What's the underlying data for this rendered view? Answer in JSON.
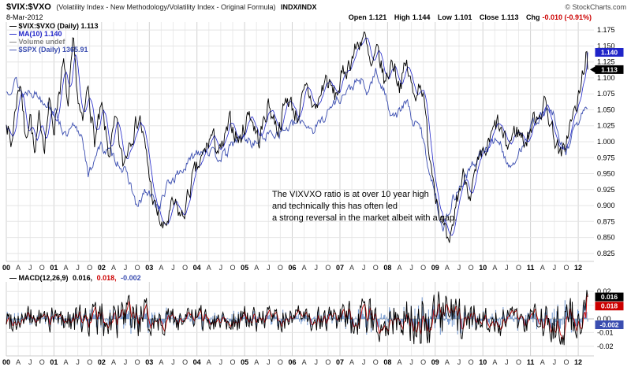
{
  "header": {
    "symbol": "$VIX:$VXO",
    "description": "(Volatility Index - New Methodology/Volatility Index - Original Formula)",
    "exchange": "INDX/INDX",
    "copyright": "© StockCharts.com",
    "date": "8-Mar-2012",
    "quote": [
      {
        "label": "Open",
        "value": "1.121",
        "color": "#000000"
      },
      {
        "label": "High",
        "value": "1.144",
        "color": "#000000"
      },
      {
        "label": "Low",
        "value": "1.101",
        "color": "#000000"
      },
      {
        "label": "Close",
        "value": "1.113",
        "color": "#000000"
      },
      {
        "label": "Chg",
        "value": "-0.010 (-0.91%)",
        "color": "#CC0000"
      }
    ]
  },
  "legend": {
    "items": [
      {
        "label": "— $VIX:$VXO (Daily) 1.113",
        "color": "#000000"
      },
      {
        "label": "— MA(10) 1.140",
        "color": "#1F24C8"
      },
      {
        "label": "— Volume undef",
        "color": "#808080"
      },
      {
        "label": "— $SPX (Daily) 1365.91",
        "color": "#3A4DB0"
      }
    ]
  },
  "annotation": [
    "The VIXVXO ratio is at over 10 year high",
    "and technically this has often led",
    "a strong reversal in the market albeit with a gap."
  ],
  "macd_legend": {
    "label": "— MACD(12,26,9)",
    "label_color": "#000000",
    "values": [
      {
        "text": "0.016,",
        "color": "#000000"
      },
      {
        "text": "0.018,",
        "color": "#CC0000"
      },
      {
        "text": "-0.002",
        "color": "#3A4DB0"
      }
    ]
  },
  "chart_data": [
    {
      "type": "line",
      "title": "$VIX:$VXO (Daily) with MA(10) and $SPX (Daily) overlay",
      "x_unit": "decimal years",
      "x_range": [
        2000.0,
        2012.2
      ],
      "ylim": [
        0.8125,
        1.1875
      ],
      "grid": true,
      "y_ticks": [
        "1.175",
        "1.150",
        "1.125",
        "1.100",
        "1.075",
        "1.050",
        "1.025",
        "1.000",
        "0.975",
        "0.950",
        "0.925",
        "0.900",
        "0.875",
        "0.850",
        "0.825"
      ],
      "x_tick_labels": [
        "00",
        "A",
        "J",
        "O",
        "01",
        "A",
        "J",
        "O",
        "02",
        "A",
        "J",
        "O",
        "03",
        "A",
        "J",
        "O",
        "04",
        "A",
        "J",
        "O",
        "05",
        "A",
        "J",
        "O",
        "06",
        "A",
        "J",
        "O",
        "07",
        "A",
        "J",
        "O",
        "08",
        "A",
        "J",
        "O",
        "09",
        "A",
        "J",
        "O",
        "10",
        "A",
        "J",
        "O",
        "11",
        "A",
        "J",
        "O",
        "12"
      ],
      "series": [
        {
          "name": "$VIX:$VXO (Daily)",
          "color": "#000000",
          "last": 1.113,
          "keypoints": [
            [
              2000,
              1.04
            ],
            [
              2000.1,
              0.99
            ],
            [
              2000.2,
              1.06
            ],
            [
              2000.3,
              1.1
            ],
            [
              2000.4,
              1.0
            ],
            [
              2000.5,
              1.05
            ],
            [
              2000.6,
              0.97
            ],
            [
              2000.7,
              1.04
            ],
            [
              2000.8,
              1.0
            ],
            [
              2000.9,
              1.06
            ],
            [
              2001,
              1.02
            ],
            [
              2001.1,
              1.08
            ],
            [
              2001.2,
              1.12
            ],
            [
              2001.3,
              1.05
            ],
            [
              2001.4,
              1.15
            ],
            [
              2001.5,
              1.07
            ],
            [
              2001.6,
              1.02
            ],
            [
              2001.72,
              1.09
            ],
            [
              2001.85,
              1.0
            ],
            [
              2002,
              1.05
            ],
            [
              2002.15,
              0.98
            ],
            [
              2002.3,
              1.03
            ],
            [
              2002.45,
              0.96
            ],
            [
              2002.6,
              1.01
            ],
            [
              2002.8,
              1.04
            ],
            [
              2002.95,
              0.97
            ],
            [
              2003.1,
              0.9
            ],
            [
              2003.3,
              0.86
            ],
            [
              2003.5,
              0.9
            ],
            [
              2003.7,
              0.88
            ],
            [
              2003.9,
              0.94
            ],
            [
              2004.1,
              0.97
            ],
            [
              2004.3,
              1.01
            ],
            [
              2004.5,
              0.98
            ],
            [
              2004.7,
              1.03
            ],
            [
              2004.9,
              1.0
            ],
            [
              2005.1,
              1.05
            ],
            [
              2005.3,
              1.0
            ],
            [
              2005.5,
              1.06
            ],
            [
              2005.7,
              1.02
            ],
            [
              2005.9,
              1.07
            ],
            [
              2006.1,
              1.04
            ],
            [
              2006.3,
              1.08
            ],
            [
              2006.5,
              1.05
            ],
            [
              2006.7,
              1.1
            ],
            [
              2006.9,
              1.07
            ],
            [
              2007.1,
              1.11
            ],
            [
              2007.3,
              1.14
            ],
            [
              2007.5,
              1.17
            ],
            [
              2007.65,
              1.11
            ],
            [
              2007.8,
              1.14
            ],
            [
              2007.95,
              1.09
            ],
            [
              2008.1,
              1.13
            ],
            [
              2008.25,
              1.09
            ],
            [
              2008.4,
              1.12
            ],
            [
              2008.55,
              1.07
            ],
            [
              2008.7,
              1.1
            ],
            [
              2008.85,
              1.0
            ],
            [
              2009,
              0.93
            ],
            [
              2009.15,
              0.87
            ],
            [
              2009.3,
              0.825
            ],
            [
              2009.45,
              0.91
            ],
            [
              2009.6,
              0.95
            ],
            [
              2009.75,
              0.92
            ],
            [
              2009.9,
              0.96
            ],
            [
              2010.1,
              0.99
            ],
            [
              2010.3,
              1.03
            ],
            [
              2010.5,
              0.99
            ],
            [
              2010.7,
              1.02
            ],
            [
              2010.9,
              1.0
            ],
            [
              2011.1,
              1.04
            ],
            [
              2011.3,
              1.06
            ],
            [
              2011.5,
              1.01
            ],
            [
              2011.65,
              0.97
            ],
            [
              2011.8,
              1.02
            ],
            [
              2011.95,
              1.05
            ],
            [
              2012.05,
              1.08
            ],
            [
              2012.12,
              1.12
            ],
            [
              2012.17,
              1.14
            ],
            [
              2012.2,
              1.113
            ]
          ]
        },
        {
          "name": "MA(10)",
          "color": "#1F24C8",
          "last": 1.14,
          "derived": "10-period moving average of $VIX:$VXO series"
        },
        {
          "name": "$SPX (Daily)",
          "color": "#3A4DB0",
          "last": 1365.91,
          "overlay_scale": {
            "value_range": [
              680,
              1565
            ],
            "axis_range": [
              0.86,
              1.108
            ]
          },
          "keypoints": [
            [
              2000,
              1455
            ],
            [
              2000.2,
              1525
            ],
            [
              2000.35,
              1440
            ],
            [
              2000.5,
              1475
            ],
            [
              2000.7,
              1430
            ],
            [
              2000.9,
              1390
            ],
            [
              2001.1,
              1310
            ],
            [
              2001.25,
              1200
            ],
            [
              2001.4,
              1255
            ],
            [
              2001.6,
              1215
            ],
            [
              2001.72,
              975
            ],
            [
              2001.9,
              1135
            ],
            [
              2002,
              1150
            ],
            [
              2002.2,
              1110
            ],
            [
              2002.4,
              1050
            ],
            [
              2002.6,
              950
            ],
            [
              2002.75,
              800
            ],
            [
              2002.9,
              900
            ],
            [
              2003.05,
              870
            ],
            [
              2003.2,
              810
            ],
            [
              2003.4,
              945
            ],
            [
              2003.6,
              1000
            ],
            [
              2003.8,
              1050
            ],
            [
              2004,
              1130
            ],
            [
              2004.2,
              1140
            ],
            [
              2004.4,
              1095
            ],
            [
              2004.6,
              1105
            ],
            [
              2004.8,
              1185
            ],
            [
              2005,
              1205
            ],
            [
              2005.2,
              1165
            ],
            [
              2005.4,
              1210
            ],
            [
              2005.6,
              1230
            ],
            [
              2005.8,
              1240
            ],
            [
              2006,
              1270
            ],
            [
              2006.2,
              1300
            ],
            [
              2006.45,
              1245
            ],
            [
              2006.7,
              1330
            ],
            [
              2006.9,
              1405
            ],
            [
              2007.1,
              1445
            ],
            [
              2007.3,
              1500
            ],
            [
              2007.45,
              1520
            ],
            [
              2007.55,
              1440
            ],
            [
              2007.75,
              1565
            ],
            [
              2007.9,
              1480
            ],
            [
              2008.05,
              1355
            ],
            [
              2008.2,
              1330
            ],
            [
              2008.4,
              1405
            ],
            [
              2008.55,
              1280
            ],
            [
              2008.7,
              1255
            ],
            [
              2008.85,
              1050
            ],
            [
              2009,
              890
            ],
            [
              2009.17,
              680
            ],
            [
              2009.35,
              850
            ],
            [
              2009.55,
              940
            ],
            [
              2009.75,
              1030
            ],
            [
              2009.95,
              1115
            ],
            [
              2010.15,
              1150
            ],
            [
              2010.3,
              1210
            ],
            [
              2010.5,
              1070
            ],
            [
              2010.65,
              1030
            ],
            [
              2010.85,
              1185
            ],
            [
              2011,
              1270
            ],
            [
              2011.2,
              1320
            ],
            [
              2011.35,
              1360
            ],
            [
              2011.5,
              1320
            ],
            [
              2011.6,
              1170
            ],
            [
              2011.75,
              1120
            ],
            [
              2011.9,
              1245
            ],
            [
              2012,
              1280
            ],
            [
              2012.1,
              1345
            ],
            [
              2012.2,
              1365.91
            ]
          ]
        }
      ],
      "axis_markers": [
        {
          "label": "1.140",
          "value": 1.14,
          "bg": "#1F24C8",
          "arrow": false
        },
        {
          "label": "1.113",
          "value": 1.113,
          "bg": "#000000",
          "arrow": true
        }
      ]
    },
    {
      "type": "line",
      "title": "MACD(12,26,9)",
      "x_range": [
        2000.0,
        2012.2
      ],
      "ylim": [
        -0.027,
        0.027
      ],
      "y_ticks": [
        "0.02",
        "0.01",
        "0.00",
        "-0.01",
        "-0.02"
      ],
      "description": "Daily oscillator noise around zero within roughly ±0.02 for 2000–2012, larger swings near 2002, 2007–2009 and late 2011; ends with upward spike",
      "series": [
        {
          "name": "MACD line",
          "color": "#000000",
          "last": 0.016
        },
        {
          "name": "Signal line",
          "color": "#CC0000",
          "last": 0.018
        },
        {
          "name": "Histogram",
          "color": "#6F94CC",
          "last": -0.002
        }
      ],
      "axis_markers": [
        {
          "label": "0.016",
          "value": 0.016,
          "bg": "#000000"
        },
        {
          "label": "0.018",
          "value": 0.018,
          "bg": "#CC0000"
        },
        {
          "label": "-0.002",
          "value": -0.002,
          "bg": "#3A4DB0"
        }
      ]
    }
  ]
}
